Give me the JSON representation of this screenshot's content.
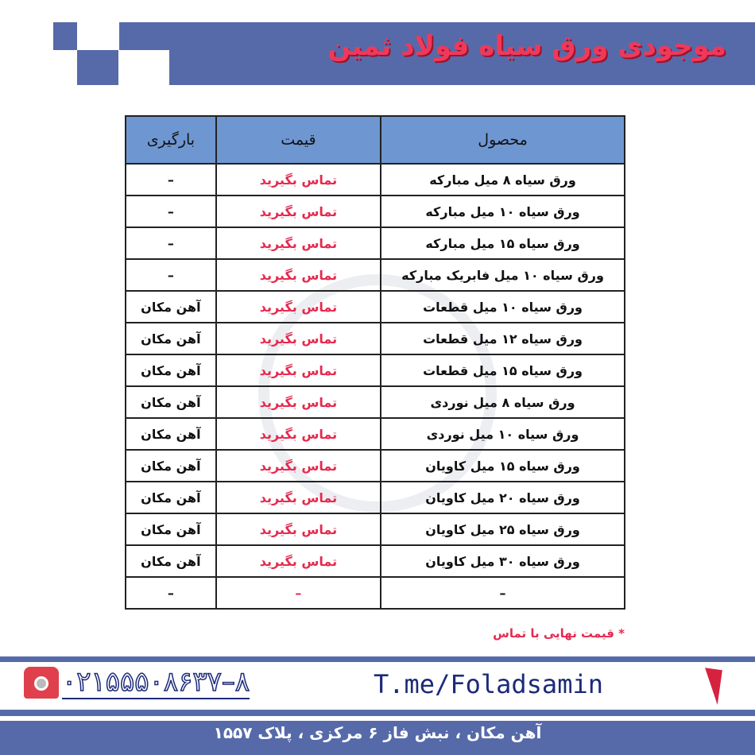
{
  "header": {
    "title": "موجودی ورق سیاه فولاد ثمین"
  },
  "table": {
    "headers": [
      "محصول",
      "قیمت",
      "بارگیری"
    ],
    "rows": [
      [
        "ورق سیاه ۸ میل مبارکه",
        "تماس بگیرید",
        "–"
      ],
      [
        "ورق سیاه ۱۰ میل مبارکه",
        "تماس بگیرید",
        "–"
      ],
      [
        "ورق سیاه ۱۵ میل مبارکه",
        "تماس بگیرید",
        "–"
      ],
      [
        "ورق سیاه ۱۰ میل فابریک مبارکه",
        "تماس بگیرید",
        "–"
      ],
      [
        "ورق سیاه ۱۰ میل قطعات",
        "تماس بگیرید",
        "آهن مکان"
      ],
      [
        "ورق سیاه ۱۲ میل قطعات",
        "تماس بگیرید",
        "آهن مکان"
      ],
      [
        "ورق سیاه ۱۵ میل قطعات",
        "تماس بگیرید",
        "آهن مکان"
      ],
      [
        "ورق سیاه ۸ میل نوردی",
        "تماس بگیرید",
        "آهن مکان"
      ],
      [
        "ورق سیاه ۱۰ میل نوردی",
        "تماس بگیرید",
        "آهن مکان"
      ],
      [
        "ورق سیاه ۱۵ میل کاویان",
        "تماس بگیرید",
        "آهن مکان"
      ],
      [
        "ورق سیاه ۲۰ میل کاویان",
        "تماس بگیرید",
        "آهن مکان"
      ],
      [
        "ورق سیاه ۲۵ میل کاویان",
        "تماس بگیرید",
        "آهن مکان"
      ],
      [
        "ورق سیاه ۳۰ میل کاویان",
        "تماس بگیرید",
        "آهن مکان"
      ],
      [
        "–",
        "–",
        "–"
      ]
    ]
  },
  "note": "* قیمت نهایی با تماس",
  "contact": {
    "phone": "۰۲۱۵۵۵۰۸۶۳۷–۸",
    "telegram": "T.me/Foladsamin",
    "address": "آهن مکان ، نبش فاز ۶ مرکزی ، پلاک ۱۵۵۷"
  },
  "colors": {
    "brand_blue": "#566aa9",
    "accent_red": "#e6294f",
    "header_blue": "#6e97d2"
  }
}
